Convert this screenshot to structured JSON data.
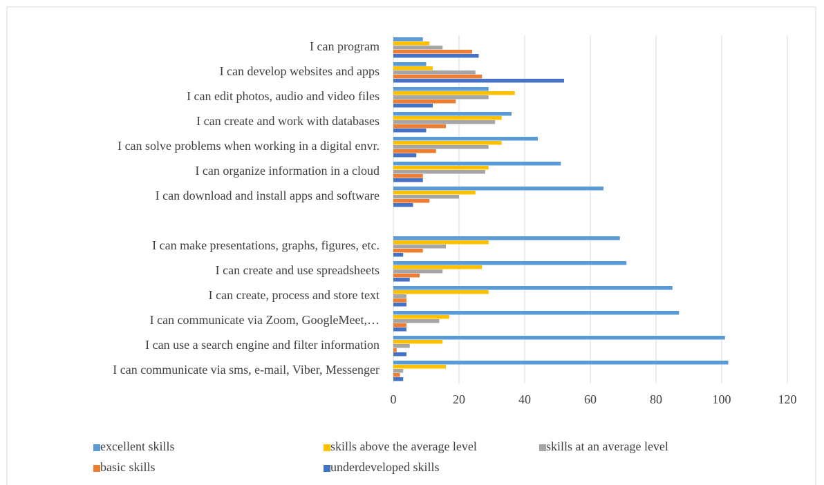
{
  "chart_data": {
    "type": "bar",
    "orientation": "horizontal",
    "categories": [
      "I can communicate via sms, e-mail, Viber, Messenger",
      "I can use a search engine and filter information",
      "I can communicate via Zoom, GoogleMeet,…",
      "I can create, process and store text",
      "I can create and use spreadsheets",
      "I can make presentations, graphs, figures, etc.",
      null,
      "I can download and install apps and software",
      "I can organize information in a cloud",
      "I can solve problems when working in a digital envr.",
      "I can create and work with databases",
      "I can edit photos, audio and video files",
      "I can develop websites and apps",
      "I can program"
    ],
    "series": [
      {
        "name": "excellent skills",
        "color": "#5b9bd5",
        "values": [
          102,
          101,
          87,
          85,
          71,
          69,
          null,
          64,
          51,
          44,
          36,
          29,
          10,
          9
        ]
      },
      {
        "name": "skills above the average level",
        "color": "#ffc000",
        "values": [
          16,
          15,
          17,
          29,
          27,
          29,
          null,
          25,
          29,
          33,
          33,
          37,
          12,
          11
        ]
      },
      {
        "name": "skills at an average level",
        "color": "#a5a5a5",
        "values": [
          3,
          5,
          14,
          4,
          15,
          16,
          null,
          20,
          28,
          29,
          31,
          29,
          25,
          15
        ]
      },
      {
        "name": "basic skills",
        "color": "#ed7d31",
        "values": [
          2,
          1,
          4,
          4,
          8,
          9,
          null,
          11,
          9,
          13,
          16,
          19,
          27,
          24
        ]
      },
      {
        "name": "underdeveloped skills",
        "color": "#4472c4",
        "values": [
          3,
          4,
          4,
          4,
          5,
          3,
          null,
          6,
          9,
          7,
          10,
          12,
          52,
          26
        ]
      }
    ],
    "xlim": [
      0,
      120
    ],
    "xticks": [
      0,
      20,
      40,
      60,
      80,
      100,
      120
    ],
    "grid": true,
    "legend": "bottom"
  }
}
